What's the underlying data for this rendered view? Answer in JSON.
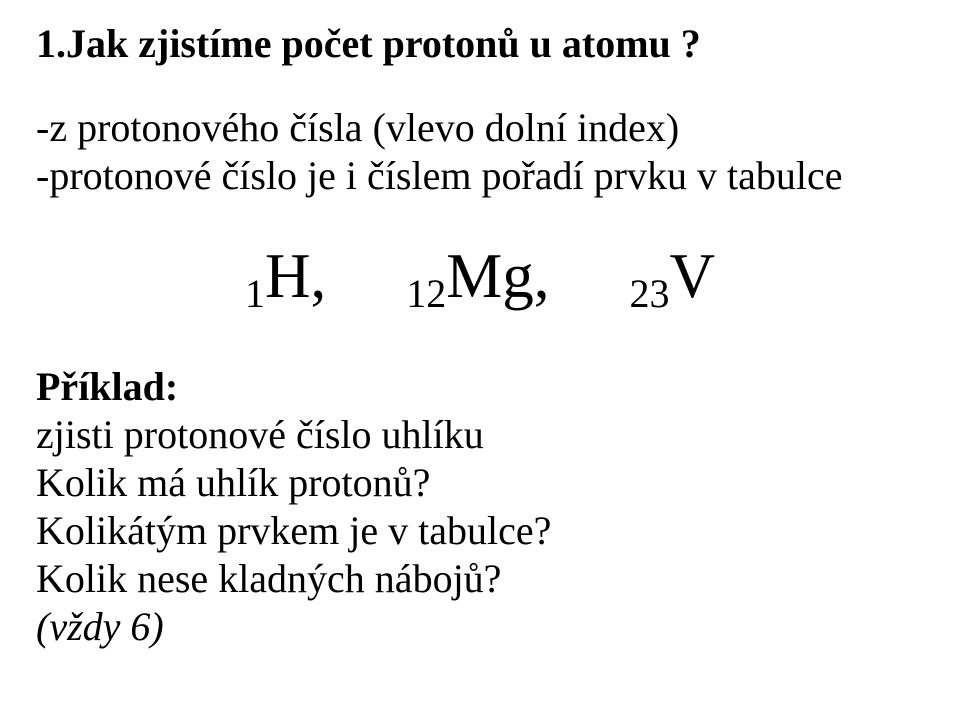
{
  "heading": "1.Jak zjistíme počet protonů u atomu ?",
  "line1": "-z protonového čísla (vlevo dolní index)",
  "line2": "-protonové číslo je i číslem pořadí prvku v tabulce",
  "formula": {
    "s1": "1",
    "e1": "H,",
    "s2": "12",
    "e2": "Mg",
    "c2": " ,",
    "s3": "23",
    "e3": "V"
  },
  "example_label": "Příklad:",
  "ex1": "zjisti protonové číslo uhlíku",
  "ex2": "Kolik má uhlík protonů?",
  "ex3": "Kolikátým prvkem je v tabulce?",
  "ex4": "Kolik nese kladných nábojů?",
  "answer": "(vždy 6)"
}
